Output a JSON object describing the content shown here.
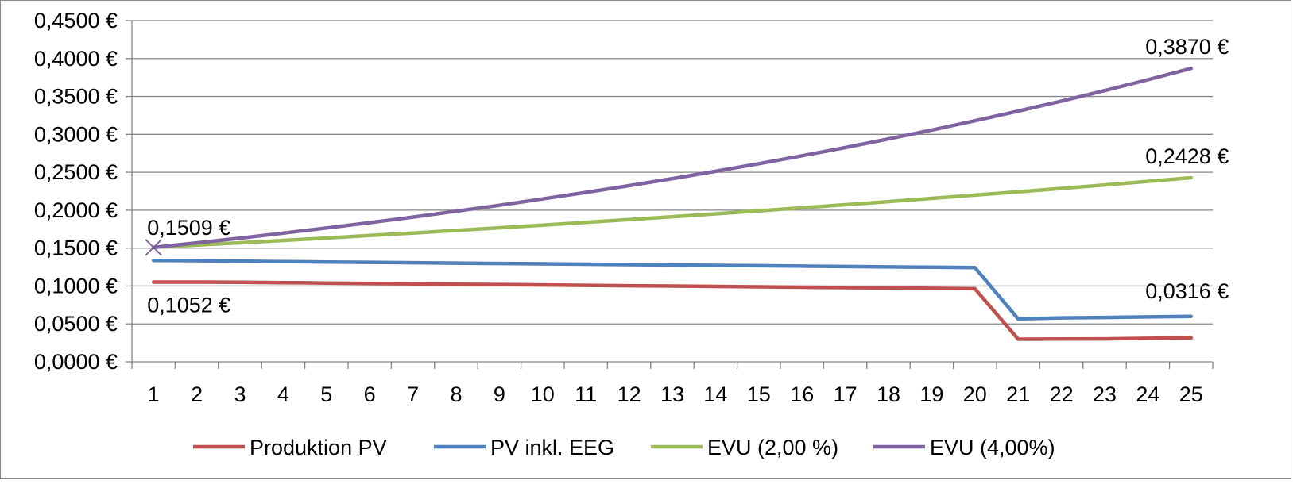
{
  "chart_data": {
    "type": "line",
    "x": [
      1,
      2,
      3,
      4,
      5,
      6,
      7,
      8,
      9,
      10,
      11,
      12,
      13,
      14,
      15,
      16,
      17,
      18,
      19,
      20,
      21,
      22,
      23,
      24,
      25
    ],
    "ylim": [
      0,
      0.45
    ],
    "yticks": [
      0,
      0.05,
      0.1,
      0.15,
      0.2,
      0.25,
      0.3,
      0.35,
      0.4,
      0.45
    ],
    "ytick_labels": [
      "0,0000 €",
      "0,0500 €",
      "0,1000 €",
      "0,1500 €",
      "0,2000 €",
      "0,2500 €",
      "0,3000 €",
      "0,3500 €",
      "0,4000 €",
      "0,4500 €"
    ],
    "grid": true,
    "legend_position": "bottom",
    "series": [
      {
        "name": "Produktion PV",
        "color": "#c0504d",
        "values": [
          0.1052,
          0.1052,
          0.1049,
          0.1044,
          0.1039,
          0.1034,
          0.1029,
          0.1024,
          0.1019,
          0.1014,
          0.1009,
          0.1004,
          0.0999,
          0.0994,
          0.0989,
          0.0984,
          0.0979,
          0.0974,
          0.0969,
          0.0964,
          0.0298,
          0.03,
          0.0302,
          0.031,
          0.0316
        ]
      },
      {
        "name": "PV inkl. EEG",
        "color": "#4f81bd",
        "values": [
          0.1336,
          0.1334,
          0.1328,
          0.1322,
          0.1317,
          0.1312,
          0.1307,
          0.1302,
          0.1297,
          0.1292,
          0.1287,
          0.1282,
          0.1277,
          0.1272,
          0.1267,
          0.1262,
          0.1257,
          0.1252,
          0.1247,
          0.1242,
          0.0566,
          0.058,
          0.0585,
          0.0592,
          0.06
        ]
      },
      {
        "name": "EVU (2,00 %)",
        "color": "#9bbb59",
        "values": [
          0.1509,
          0.1539,
          0.157,
          0.1601,
          0.1633,
          0.1666,
          0.1699,
          0.1733,
          0.1768,
          0.1803,
          0.184,
          0.1876,
          0.1914,
          0.1952,
          0.1991,
          0.2031,
          0.2072,
          0.2113,
          0.2156,
          0.2199,
          0.2243,
          0.2287,
          0.2333,
          0.238,
          0.2428
        ]
      },
      {
        "name": "EVU (4,00%)",
        "color": "#8064a2",
        "values": [
          0.1509,
          0.1569,
          0.1632,
          0.1697,
          0.1765,
          0.1836,
          0.1909,
          0.1986,
          0.2065,
          0.2148,
          0.2234,
          0.2323,
          0.2416,
          0.2513,
          0.2613,
          0.2718,
          0.2826,
          0.294,
          0.3057,
          0.3179,
          0.3307,
          0.3439,
          0.3577,
          0.372,
          0.387
        ]
      }
    ],
    "data_labels": [
      {
        "text": "0,1509 €",
        "series": 3,
        "index": 0,
        "placement": "above"
      },
      {
        "text": "0,1052 €",
        "series": 0,
        "index": 0,
        "placement": "below"
      },
      {
        "text": "0,3870 €",
        "series": 3,
        "index": 24,
        "placement": "above"
      },
      {
        "text": "0,2428 €",
        "series": 2,
        "index": 24,
        "placement": "above"
      },
      {
        "text": "0,0316 €",
        "series": 0,
        "index": 24,
        "placement": "above-far"
      }
    ]
  }
}
